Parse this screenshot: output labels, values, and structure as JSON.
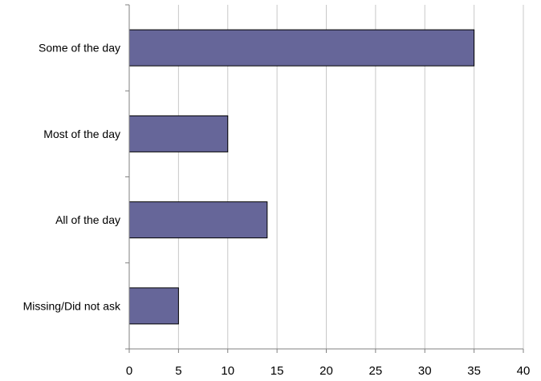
{
  "chart_data": {
    "type": "bar",
    "orientation": "horizontal",
    "categories": [
      "Some of the day",
      "Most of the day",
      "All of the day",
      "Missing/Did not ask"
    ],
    "values": [
      35,
      10,
      14,
      5
    ],
    "xlim": [
      0,
      40
    ],
    "x_ticks": [
      0,
      5,
      10,
      15,
      20,
      25,
      30,
      35,
      40
    ],
    "grid": "vertical",
    "bar_color": "#666699",
    "title": "",
    "xlabel": "",
    "ylabel": ""
  }
}
